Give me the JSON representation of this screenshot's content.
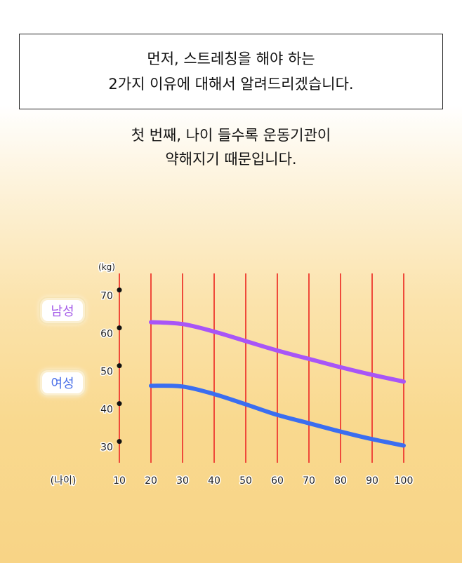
{
  "caption": {
    "line1": "먼저, 스트레칭을 해야 하는",
    "line2": "2가지 이유에 대해서 알려드리겠습니다."
  },
  "narration": {
    "line1": "첫 번째, 나이 들수록 운동기관이",
    "line2": "약해지기 때문입니다."
  },
  "legend": {
    "male": "남성",
    "female": "여성"
  },
  "chart_data": {
    "type": "line",
    "x": [
      20,
      30,
      40,
      50,
      60,
      70,
      80,
      90,
      100
    ],
    "x_ticks": [
      10,
      20,
      30,
      40,
      50,
      60,
      70,
      80,
      90,
      100
    ],
    "y_ticks": [
      30,
      40,
      50,
      60,
      70
    ],
    "xlabel": "(나이)",
    "ylabel": "(kg)",
    "xlim": [
      10,
      100
    ],
    "ylim": [
      24,
      74
    ],
    "grid": "vertical",
    "series": [
      {
        "name": "남성",
        "color": "#a855f7",
        "values": [
          61.5,
          61,
          59,
          56.5,
          54,
          51.8,
          49.6,
          47.6,
          45.8
        ]
      },
      {
        "name": "여성",
        "color": "#3b6ef0",
        "values": [
          44.7,
          44.5,
          42.5,
          39.8,
          37,
          34.8,
          32.6,
          30.6,
          28.9
        ]
      }
    ],
    "grid_color": "#ef4a3a"
  }
}
